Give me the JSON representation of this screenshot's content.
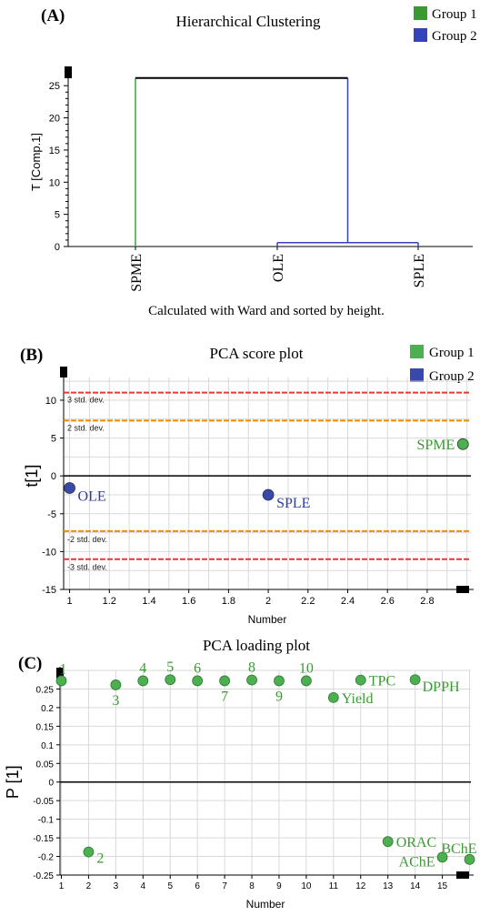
{
  "colors": {
    "group1": "#3a9a32",
    "group2": "#2e3f9e",
    "dendro_green": "#33aa33",
    "dendro_blue": "#3344bb",
    "sd3": "#e53935",
    "sd2": "#f08c00",
    "grid": "#d9d9d9",
    "point_fill": "#4caf50",
    "point_fill_blue": "#3949ab"
  },
  "chart_data": [
    {
      "type": "dendrogram",
      "panel_label": "(A)",
      "title": "Hierarchical Clustering",
      "footer": "Calculated with Ward and sorted by height.",
      "ylabel": "T [Comp.1]",
      "ylim": [
        0,
        26.3
      ],
      "yticks": [
        "0",
        "5",
        "10",
        "15",
        "20",
        "25"
      ],
      "leaves": [
        "SPME",
        "OLE",
        "SPLE"
      ],
      "merges": [
        {
          "left": "OLE",
          "right": "SPLE",
          "height": 0.6
        },
        {
          "left": "SPME",
          "right": "OLE+SPLE",
          "height": 26.2
        }
      ],
      "legend": [
        {
          "name": "Group 1",
          "color": "#3a9a32"
        },
        {
          "name": "Group 2",
          "color": "#3344bb"
        }
      ]
    },
    {
      "type": "scatter",
      "panel_label": "(B)",
      "title": "PCA score plot",
      "xlabel": "Number",
      "ylabel": "t[1]",
      "xlim": [
        0.97,
        3.02
      ],
      "ylim": [
        -15,
        13
      ],
      "xticks": [
        "1",
        "1.2",
        "1.4",
        "1.6",
        "1.8",
        "2",
        "2.2",
        "2.4",
        "2.6",
        "2.8"
      ],
      "yticks": [
        "-15",
        "-10",
        "-5",
        "0",
        "5",
        "10"
      ],
      "reference_lines": [
        {
          "y": 11.0,
          "label": "3 std. dev.",
          "kind": "sd3"
        },
        {
          "y": 7.3,
          "label": "2 std. dev.",
          "kind": "sd2"
        },
        {
          "y": -7.3,
          "label": "-2 std. dev.",
          "kind": "sd2"
        },
        {
          "y": -11.0,
          "label": "-3 std. dev.",
          "kind": "sd3"
        }
      ],
      "points": [
        {
          "label": "OLE",
          "x": 1.0,
          "y": -1.6,
          "group": 2
        },
        {
          "label": "SPLE",
          "x": 2.0,
          "y": -2.5,
          "group": 2
        },
        {
          "label": "SPME",
          "x": 2.98,
          "y": 4.2,
          "group": 1
        }
      ],
      "legend": [
        {
          "name": "Group 1",
          "color": "#4caf50"
        },
        {
          "name": "Group 2",
          "color": "#3949ab"
        }
      ]
    },
    {
      "type": "scatter",
      "panel_label": "(C)",
      "title": "PCA loading plot",
      "xlabel": "Number",
      "ylabel": "P [1]",
      "xlim": [
        0.95,
        16.05
      ],
      "ylim": [
        -0.25,
        0.3
      ],
      "xticks": [
        "1",
        "2",
        "3",
        "4",
        "5",
        "6",
        "7",
        "8",
        "9",
        "10",
        "11",
        "12",
        "13",
        "14",
        "15"
      ],
      "yticks": [
        "-0.25",
        "-0.2",
        "-0.15",
        "-0.1",
        "-0.05",
        "0",
        "0.05",
        "0.1",
        "0.15",
        "0.2",
        "0.25"
      ],
      "points": [
        {
          "label": "1",
          "x": 1,
          "y": 0.272,
          "pos": "above"
        },
        {
          "label": "2",
          "x": 2,
          "y": -0.188,
          "pos": "right"
        },
        {
          "label": "3",
          "x": 3,
          "y": 0.261,
          "pos": "below"
        },
        {
          "label": "4",
          "x": 4,
          "y": 0.272,
          "pos": "above"
        },
        {
          "label": "5",
          "x": 5,
          "y": 0.275,
          "pos": "above"
        },
        {
          "label": "6",
          "x": 6,
          "y": 0.272,
          "pos": "above"
        },
        {
          "label": "7",
          "x": 7,
          "y": 0.272,
          "pos": "below"
        },
        {
          "label": "8",
          "x": 8,
          "y": 0.274,
          "pos": "above"
        },
        {
          "label": "9",
          "x": 9,
          "y": 0.272,
          "pos": "below"
        },
        {
          "label": "10",
          "x": 10,
          "y": 0.272,
          "pos": "above"
        },
        {
          "label": "Yield",
          "x": 11,
          "y": 0.227,
          "pos": "right"
        },
        {
          "label": "TPC",
          "x": 12,
          "y": 0.274,
          "pos": "right"
        },
        {
          "label": "ORAC",
          "x": 13,
          "y": -0.16,
          "pos": "right"
        },
        {
          "label": "DPPH",
          "x": 14,
          "y": 0.275,
          "pos": "right-low"
        },
        {
          "label": "AChE",
          "x": 15,
          "y": -0.202,
          "pos": "left"
        },
        {
          "label": "BChE",
          "x": 16,
          "y": -0.208,
          "pos": "above-left"
        }
      ]
    }
  ]
}
